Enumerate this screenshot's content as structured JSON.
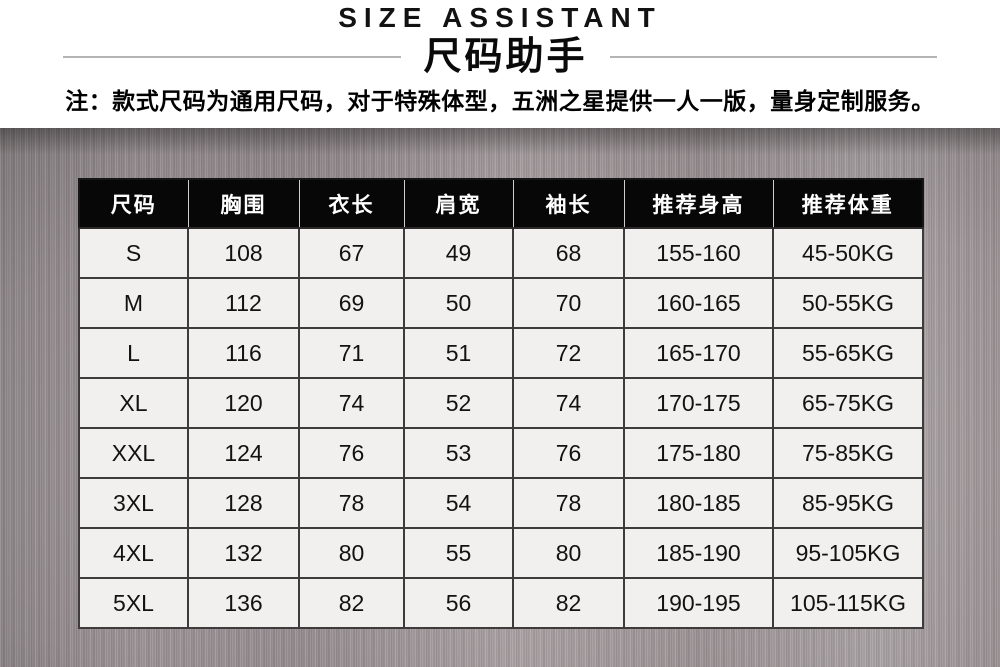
{
  "header": {
    "title_en": "SIZE ASSISTANT",
    "title_zh": "尺码助手",
    "note": "注：款式尺码为通用尺码，对于特殊体型，五洲之星提供一人一版，量身定制服务。"
  },
  "size_table": {
    "columns": [
      "尺码",
      "胸围",
      "衣长",
      "肩宽",
      "袖长",
      "推荐身高",
      "推荐体重"
    ],
    "rows": [
      [
        "S",
        "108",
        "67",
        "49",
        "68",
        "155-160",
        "45-50KG"
      ],
      [
        "M",
        "112",
        "69",
        "50",
        "70",
        "160-165",
        "50-55KG"
      ],
      [
        "L",
        "116",
        "71",
        "51",
        "72",
        "165-170",
        "55-65KG"
      ],
      [
        "XL",
        "120",
        "74",
        "52",
        "74",
        "170-175",
        "65-75KG"
      ],
      [
        "XXL",
        "124",
        "76",
        "53",
        "76",
        "175-180",
        "75-85KG"
      ],
      [
        "3XL",
        "128",
        "78",
        "54",
        "78",
        "180-185",
        "85-95KG"
      ],
      [
        "4XL",
        "132",
        "80",
        "55",
        "80",
        "185-190",
        "95-105KG"
      ],
      [
        "5XL",
        "136",
        "82",
        "56",
        "82",
        "190-195",
        "105-115KG"
      ]
    ]
  },
  "colors": {
    "table_header_bg": "#070707",
    "table_header_text": "#ffffff",
    "cell_bg": "#f2f0ef",
    "cell_text": "#121212",
    "grid_border": "#3d3b3b",
    "divider_line": "#b5b3b3",
    "metal_base": "#9a9193"
  }
}
